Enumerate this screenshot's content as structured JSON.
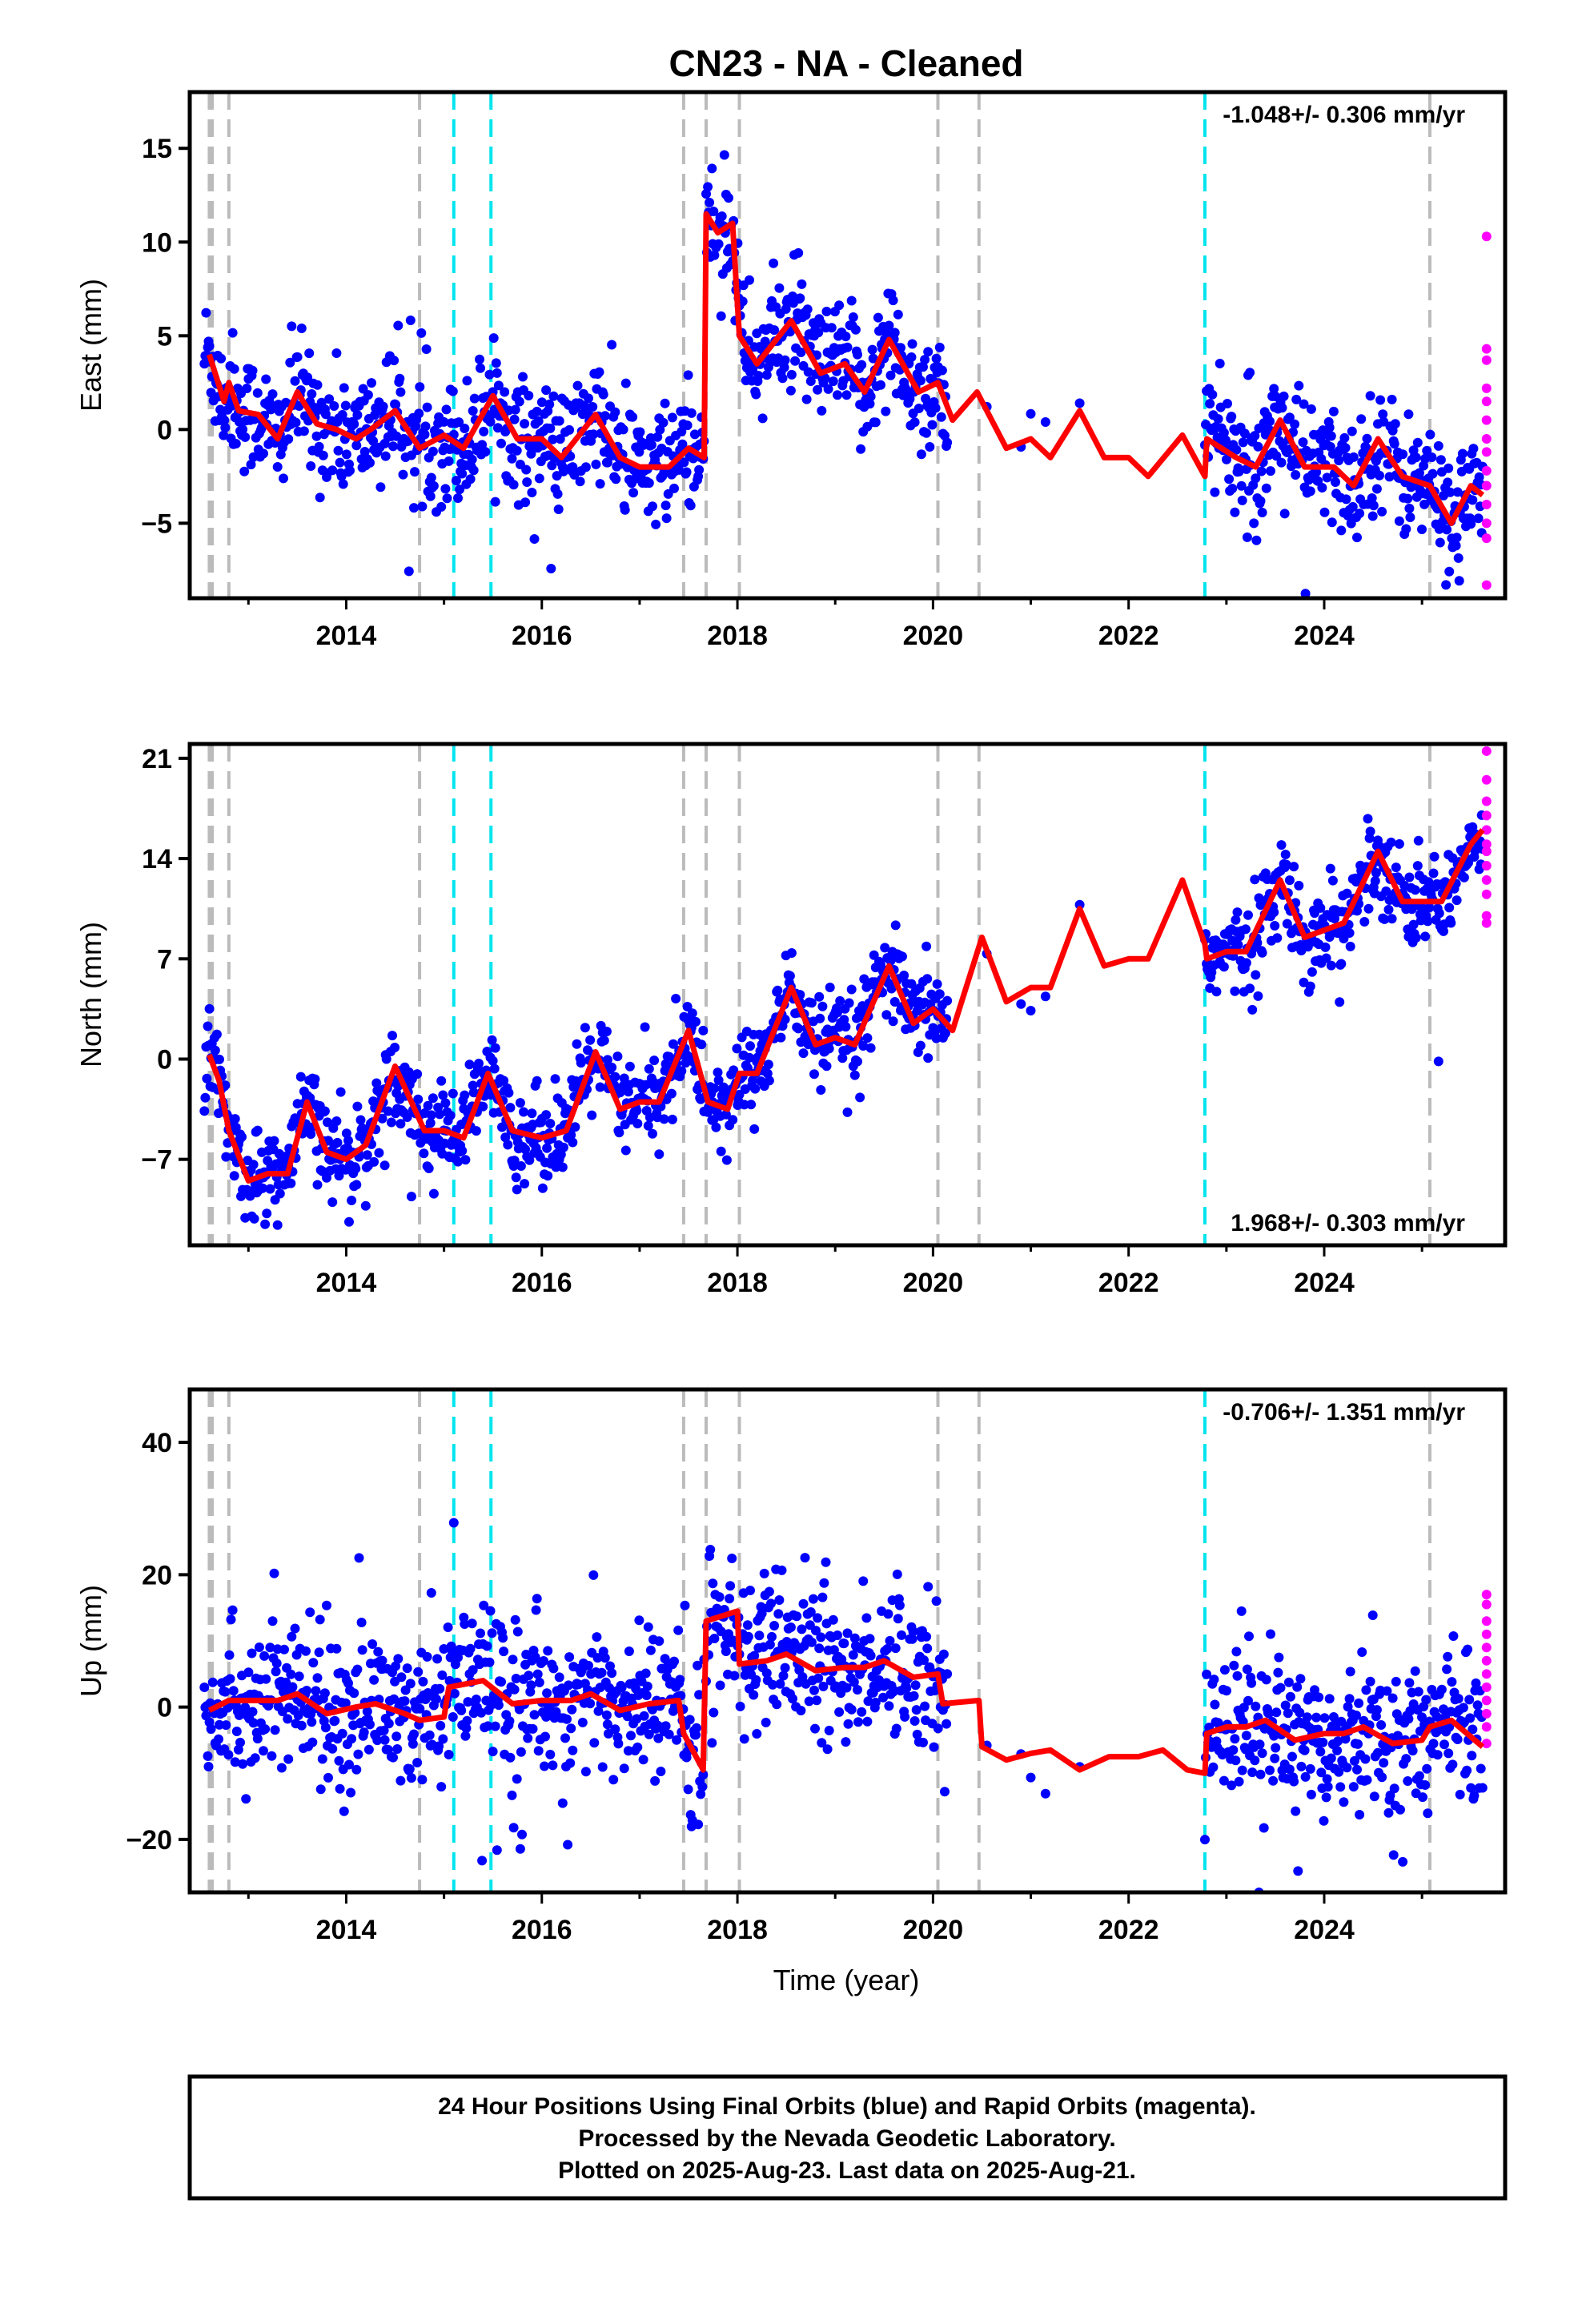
{
  "chart_data": {
    "type": "scatter",
    "title": "CN23  - NA - Cleaned",
    "xlabel": "Time (year)",
    "x_ticks": [
      "2014",
      "2016",
      "2018",
      "2020",
      "2022",
      "2024"
    ],
    "xlim": [
      2012.4,
      2025.85
    ],
    "series_legend": [
      {
        "name": "Final Orbits",
        "color": "#0000ff"
      },
      {
        "name": "Rapid Orbits",
        "color": "#ff00ff"
      },
      {
        "name": "Model",
        "color": "#ff0000"
      }
    ],
    "event_lines": {
      "gray": [
        2012.6,
        2012.63,
        2012.8,
        2014.75,
        2017.45,
        2017.68,
        2018.02,
        2020.05,
        2020.47,
        2025.08
      ],
      "cyan": [
        2015.1,
        2015.48,
        2022.78
      ],
      "colors": {
        "gray": "#bbbbbb",
        "cyan": "#00e5ee"
      }
    },
    "panels": [
      {
        "id": "east",
        "ylabel": "East (mm)",
        "ylim": [
          -9,
          18
        ],
        "yticks": [
          "15",
          "10",
          "5",
          "0",
          "−5"
        ],
        "ytick_values": [
          15,
          10,
          5,
          0,
          -5
        ],
        "rate_text": "-1.048+/- 0.306 mm/yr",
        "rate_pos": "top",
        "model": [
          [
            2012.6,
            4.0
          ],
          [
            2012.75,
            1.5
          ],
          [
            2012.8,
            2.5
          ],
          [
            2012.9,
            1.0
          ],
          [
            2013.1,
            0.8
          ],
          [
            2013.3,
            -0.5
          ],
          [
            2013.5,
            2.0
          ],
          [
            2013.7,
            0.3
          ],
          [
            2013.9,
            0.0
          ],
          [
            2014.1,
            -0.5
          ],
          [
            2014.25,
            0.0
          ],
          [
            2014.5,
            1.0
          ],
          [
            2014.75,
            -1.0
          ],
          [
            2015.0,
            -0.3
          ],
          [
            2015.2,
            -1.0
          ],
          [
            2015.5,
            1.8
          ],
          [
            2015.75,
            -0.5
          ],
          [
            2016.0,
            -0.5
          ],
          [
            2016.2,
            -1.5
          ],
          [
            2016.55,
            0.8
          ],
          [
            2016.8,
            -1.5
          ],
          [
            2017.0,
            -2.0
          ],
          [
            2017.3,
            -2.0
          ],
          [
            2017.5,
            -1.0
          ],
          [
            2017.66,
            -1.5
          ],
          [
            2017.68,
            11.5
          ],
          [
            2017.8,
            10.5
          ],
          [
            2017.95,
            11.0
          ],
          [
            2018.02,
            5.0
          ],
          [
            2018.2,
            3.5
          ],
          [
            2018.55,
            5.8
          ],
          [
            2018.85,
            3.0
          ],
          [
            2019.1,
            3.5
          ],
          [
            2019.3,
            2.0
          ],
          [
            2019.55,
            4.8
          ],
          [
            2019.85,
            2.0
          ],
          [
            2020.05,
            2.5
          ],
          [
            2020.2,
            0.5
          ],
          [
            2020.45,
            2.0
          ],
          [
            2020.75,
            -1.0
          ],
          [
            2021.0,
            -0.5
          ],
          [
            2021.2,
            -1.5
          ],
          [
            2021.5,
            1.0
          ],
          [
            2021.75,
            -1.5
          ],
          [
            2022.0,
            -1.5
          ],
          [
            2022.2,
            -2.5
          ],
          [
            2022.55,
            -0.3
          ],
          [
            2022.78,
            -2.5
          ],
          [
            2022.8,
            -0.5
          ],
          [
            2023.1,
            -1.5
          ],
          [
            2023.3,
            -2.0
          ],
          [
            2023.55,
            0.5
          ],
          [
            2023.8,
            -2.0
          ],
          [
            2024.1,
            -2.0
          ],
          [
            2024.3,
            -3.0
          ],
          [
            2024.55,
            -0.5
          ],
          [
            2024.8,
            -2.5
          ],
          [
            2025.08,
            -3.0
          ],
          [
            2025.3,
            -5.0
          ],
          [
            2025.5,
            -3.0
          ],
          [
            2025.62,
            -3.5
          ]
        ],
        "rapid": [
          10.3,
          4.3,
          3.7,
          2.2,
          1.5,
          0.5,
          -0.5,
          -1.2,
          -2.2,
          -3.0,
          -4.0,
          -5.0,
          -5.8,
          -8.3
        ]
      },
      {
        "id": "north",
        "ylabel": "North (mm)",
        "ylim": [
          -13,
          22
        ],
        "yticks": [
          "21",
          "14",
          "7",
          "0",
          "−7"
        ],
        "ytick_values": [
          21,
          14,
          7,
          0,
          -7
        ],
        "rate_text": "1.968+/- 0.303 mm/yr",
        "rate_pos": "bottom",
        "model": [
          [
            2012.6,
            0.3
          ],
          [
            2012.7,
            -1.5
          ],
          [
            2012.8,
            -5.0
          ],
          [
            2013.0,
            -8.5
          ],
          [
            2013.2,
            -8.0
          ],
          [
            2013.4,
            -8.0
          ],
          [
            2013.6,
            -3.0
          ],
          [
            2013.8,
            -6.5
          ],
          [
            2014.0,
            -7.0
          ],
          [
            2014.2,
            -6.0
          ],
          [
            2014.5,
            -0.5
          ],
          [
            2014.8,
            -5.0
          ],
          [
            2015.0,
            -5.0
          ],
          [
            2015.2,
            -5.5
          ],
          [
            2015.45,
            -1.0
          ],
          [
            2015.7,
            -5.0
          ],
          [
            2016.0,
            -5.5
          ],
          [
            2016.25,
            -5.0
          ],
          [
            2016.55,
            0.5
          ],
          [
            2016.8,
            -3.5
          ],
          [
            2017.0,
            -3.0
          ],
          [
            2017.2,
            -3.0
          ],
          [
            2017.5,
            2.0
          ],
          [
            2017.7,
            -3.0
          ],
          [
            2017.9,
            -3.5
          ],
          [
            2018.02,
            -1.0
          ],
          [
            2018.2,
            -1.0
          ],
          [
            2018.55,
            5.0
          ],
          [
            2018.8,
            1.0
          ],
          [
            2019.0,
            1.5
          ],
          [
            2019.2,
            1.0
          ],
          [
            2019.55,
            6.5
          ],
          [
            2019.8,
            2.5
          ],
          [
            2020.0,
            3.5
          ],
          [
            2020.2,
            2.0
          ],
          [
            2020.5,
            8.5
          ],
          [
            2020.75,
            4.0
          ],
          [
            2021.0,
            5.0
          ],
          [
            2021.2,
            5.0
          ],
          [
            2021.5,
            10.5
          ],
          [
            2021.75,
            6.5
          ],
          [
            2022.0,
            7.0
          ],
          [
            2022.2,
            7.0
          ],
          [
            2022.55,
            12.5
          ],
          [
            2022.78,
            8.0
          ],
          [
            2022.8,
            7.0
          ],
          [
            2023.0,
            7.5
          ],
          [
            2023.2,
            7.5
          ],
          [
            2023.55,
            12.5
          ],
          [
            2023.8,
            8.5
          ],
          [
            2024.0,
            9.0
          ],
          [
            2024.2,
            9.5
          ],
          [
            2024.55,
            14.5
          ],
          [
            2024.8,
            11.0
          ],
          [
            2025.0,
            11.0
          ],
          [
            2025.2,
            11.0
          ],
          [
            2025.5,
            15.0
          ],
          [
            2025.62,
            16.0
          ]
        ],
        "rapid": [
          21.5,
          19.5,
          18.0,
          17.0,
          16.0,
          15.0,
          14.5,
          13.5,
          12.5,
          11.5,
          10.0,
          9.5
        ]
      },
      {
        "id": "up",
        "ylabel": "Up (mm)",
        "ylim": [
          -28,
          48
        ],
        "yticks": [
          "40",
          "20",
          "0",
          "−20"
        ],
        "ytick_values": [
          40,
          20,
          0,
          -20
        ],
        "rate_text": "-0.706+/- 1.351 mm/yr",
        "rate_pos": "top",
        "model": [
          [
            2012.6,
            -0.5
          ],
          [
            2012.8,
            1.0
          ],
          [
            2013.0,
            1.0
          ],
          [
            2013.3,
            1.0
          ],
          [
            2013.5,
            2.0
          ],
          [
            2013.8,
            -1.0
          ],
          [
            2014.1,
            0.0
          ],
          [
            2014.3,
            0.5
          ],
          [
            2014.6,
            -1.0
          ],
          [
            2014.75,
            -2.0
          ],
          [
            2015.0,
            -1.5
          ],
          [
            2015.05,
            3.0
          ],
          [
            2015.4,
            4.0
          ],
          [
            2015.7,
            0.5
          ],
          [
            2016.0,
            1.0
          ],
          [
            2016.3,
            1.0
          ],
          [
            2016.5,
            2.0
          ],
          [
            2016.8,
            -0.5
          ],
          [
            2017.1,
            0.5
          ],
          [
            2017.4,
            1.0
          ],
          [
            2017.45,
            -4.0
          ],
          [
            2017.65,
            -9.5
          ],
          [
            2017.68,
            13.0
          ],
          [
            2018.0,
            14.5
          ],
          [
            2018.02,
            6.5
          ],
          [
            2018.3,
            7.0
          ],
          [
            2018.5,
            8.0
          ],
          [
            2018.8,
            5.5
          ],
          [
            2019.1,
            6.0
          ],
          [
            2019.3,
            6.0
          ],
          [
            2019.5,
            7.0
          ],
          [
            2019.8,
            4.5
          ],
          [
            2020.05,
            5.0
          ],
          [
            2020.1,
            0.5
          ],
          [
            2020.47,
            1.0
          ],
          [
            2020.5,
            -6.0
          ],
          [
            2020.75,
            -8.0
          ],
          [
            2021.0,
            -7.0
          ],
          [
            2021.2,
            -6.5
          ],
          [
            2021.5,
            -9.5
          ],
          [
            2021.8,
            -7.5
          ],
          [
            2022.1,
            -7.5
          ],
          [
            2022.35,
            -6.5
          ],
          [
            2022.6,
            -9.5
          ],
          [
            2022.78,
            -10.0
          ],
          [
            2022.8,
            -4.0
          ],
          [
            2023.0,
            -3.0
          ],
          [
            2023.2,
            -3.0
          ],
          [
            2023.4,
            -2.0
          ],
          [
            2023.7,
            -5.0
          ],
          [
            2024.0,
            -4.0
          ],
          [
            2024.2,
            -4.0
          ],
          [
            2024.4,
            -3.0
          ],
          [
            2024.7,
            -5.5
          ],
          [
            2025.0,
            -5.0
          ],
          [
            2025.08,
            -3.0
          ],
          [
            2025.3,
            -2.0
          ],
          [
            2025.62,
            -6.0
          ]
        ],
        "rapid": [
          17.0,
          15.5,
          13.0,
          11.0,
          9.0,
          7.0,
          5.0,
          3.0,
          1.0,
          -1.0,
          -3.0,
          -5.5
        ]
      }
    ]
  },
  "footer": {
    "line1": "24 Hour Positions Using Final Orbits (blue) and Rapid Orbits (magenta).",
    "line2": "Processed by the Nevada Geodetic Laboratory.",
    "line3": "Plotted on 2025-Aug-23. Last data on 2025-Aug-21."
  }
}
